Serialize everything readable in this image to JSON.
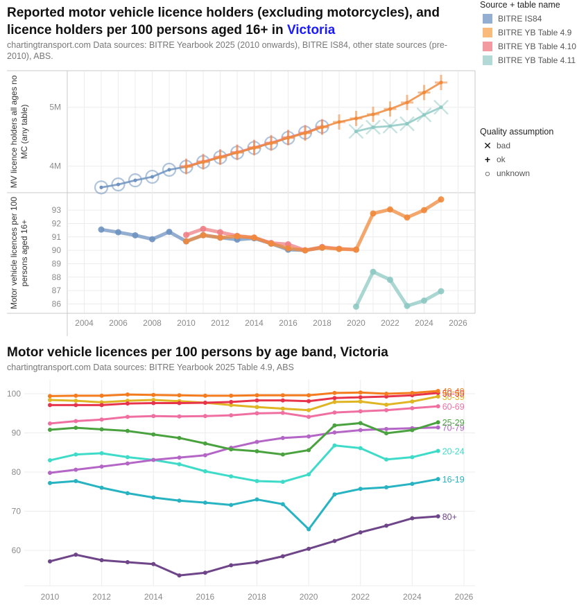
{
  "header": {
    "title_part1": "Reported motor vehicle licence holders (excluding motorcycles), and licence holders per 100 persons aged 16+ in ",
    "title_state": "Victoria",
    "subtitle": "chartingtransport.com  Data sources: BITRE Yearbook 2025 (2010 onwards), BITRE IS84, other state sources (pre-2010), ABS."
  },
  "legends": {
    "source": {
      "title": "Source + table name",
      "items": [
        {
          "label": "BITRE IS84",
          "color": "#7b9cc4"
        },
        {
          "label": "BITRE YB Table 4.9",
          "color": "#f7a652"
        },
        {
          "label": "BITRE YB Table 4.10",
          "color": "#ee7f86"
        },
        {
          "label": "BITRE YB Table 4.11",
          "color": "#9fcfcb"
        }
      ]
    },
    "quality": {
      "title": "Quality assumption",
      "items": [
        {
          "label": "bad",
          "glyph": "✕"
        },
        {
          "label": "ok",
          "glyph": "+"
        },
        {
          "label": "unknown",
          "glyph": "○"
        }
      ]
    }
  },
  "bottom_header": {
    "title": "Motor vehicle licences per 100 persons by age band, Victoria",
    "subtitle": "chartingtransport.com  Data sources: BITRE Yearbook 2025 Table 4.9, ABS"
  },
  "chart_data": [
    {
      "type": "line",
      "title": "Reported motor vehicle licence holders (excluding motorcycles)",
      "ylabel": "MV licence holders all ages no MC (any table)",
      "xlabel": "",
      "xlim": [
        2003,
        2027
      ],
      "ylim": [
        3.55,
        5.62
      ],
      "y_unit": "millions",
      "yticks": [
        4,
        5
      ],
      "ytick_labels": [
        "4M",
        "5M"
      ],
      "grid": true,
      "series": [
        {
          "name": "BITRE IS84",
          "quality": "unknown",
          "color": "#6f93c0",
          "x": [
            2005,
            2006,
            2007,
            2008,
            2009,
            2010,
            2011,
            2012,
            2013,
            2014,
            2015,
            2016,
            2017,
            2018
          ],
          "y": [
            3.64,
            3.69,
            3.76,
            3.82,
            3.94,
            3.99,
            4.07,
            4.15,
            4.23,
            4.31,
            4.39,
            4.48,
            4.57,
            4.67
          ]
        },
        {
          "name": "BITRE YB Table 4.10",
          "quality": "ok",
          "color": "#ee7f86",
          "x": [
            2010,
            2011,
            2012,
            2013,
            2014,
            2015,
            2016,
            2017,
            2018
          ],
          "y": [
            4.0,
            4.08,
            4.16,
            4.24,
            4.32,
            4.4,
            4.49,
            4.57,
            4.67
          ]
        },
        {
          "name": "BITRE YB Table 4.9",
          "quality": "ok",
          "color": "#f08a3c",
          "x": [
            2010,
            2011,
            2012,
            2013,
            2014,
            2015,
            2016,
            2017,
            2018,
            2019,
            2020,
            2021,
            2022,
            2023,
            2024,
            2025
          ],
          "y": [
            3.99,
            4.07,
            4.15,
            4.23,
            4.31,
            4.39,
            4.48,
            4.56,
            4.66,
            4.75,
            4.81,
            4.88,
            4.97,
            5.08,
            5.25,
            5.42
          ]
        },
        {
          "name": "BITRE YB Table 4.11",
          "quality": "bad",
          "color": "#8ec9c3",
          "x": [
            2020,
            2021,
            2022,
            2023,
            2024,
            2025
          ],
          "y": [
            4.59,
            4.66,
            4.68,
            4.72,
            4.87,
            5.0
          ]
        }
      ]
    },
    {
      "type": "line",
      "title": "Licence holders per 100 persons aged 16+",
      "ylabel": "Motor vehicle licences per 100 persons aged 16+",
      "xlabel": "",
      "xlim": [
        2003,
        2027
      ],
      "ylim": [
        85.3,
        94.3
      ],
      "yticks": [
        86,
        87,
        88,
        89,
        90,
        91,
        92,
        93
      ],
      "xticks": [
        2004,
        2006,
        2008,
        2010,
        2012,
        2014,
        2016,
        2018,
        2020,
        2022,
        2024,
        2026
      ],
      "grid": true,
      "series": [
        {
          "name": "BITRE IS84",
          "color": "#6f93c0",
          "x": [
            2005,
            2006,
            2007,
            2008,
            2009,
            2010,
            2011,
            2012,
            2013,
            2014,
            2015,
            2016,
            2017,
            2018
          ],
          "y": [
            91.55,
            91.35,
            91.12,
            90.83,
            91.38,
            90.67,
            91.13,
            90.95,
            90.8,
            90.9,
            90.5,
            90.05,
            90.0,
            90.2
          ]
        },
        {
          "name": "BITRE YB Table 4.10",
          "color": "#ee7f86",
          "x": [
            2010,
            2011,
            2012,
            2013,
            2014,
            2015,
            2016,
            2017,
            2018,
            2019,
            2020
          ],
          "y": [
            91.15,
            91.6,
            91.35,
            91.08,
            90.95,
            90.55,
            90.45,
            90.0,
            90.25,
            90.12,
            90.05
          ]
        },
        {
          "name": "BITRE YB Table 4.9",
          "color": "#f08a3c",
          "x": [
            2010,
            2011,
            2012,
            2013,
            2014,
            2015,
            2016,
            2017,
            2018,
            2019,
            2020,
            2021,
            2022,
            2023,
            2024,
            2025
          ],
          "y": [
            90.67,
            91.13,
            90.95,
            91.05,
            90.95,
            90.5,
            90.15,
            90.0,
            90.2,
            90.1,
            90.05,
            92.75,
            93.05,
            92.45,
            93.0,
            93.8
          ]
        },
        {
          "name": "BITRE YB Table 4.11",
          "color": "#8ec9c3",
          "x": [
            2020,
            2021,
            2022,
            2023,
            2024,
            2025
          ],
          "y": [
            85.8,
            88.4,
            87.8,
            85.85,
            86.25,
            86.95
          ]
        }
      ]
    },
    {
      "type": "line",
      "title": "Motor vehicle licences per 100 persons by age band, Victoria",
      "xlabel": "",
      "ylabel": "",
      "xlim": [
        2009,
        2026.3
      ],
      "ylim": [
        51,
        103.5
      ],
      "yticks": [
        60,
        70,
        80,
        90,
        100
      ],
      "xticks": [
        2010,
        2012,
        2014,
        2016,
        2018,
        2020,
        2022,
        2024,
        2026
      ],
      "grid": true,
      "x": [
        2010,
        2011,
        2012,
        2013,
        2014,
        2015,
        2016,
        2017,
        2018,
        2019,
        2020,
        2021,
        2022,
        2023,
        2024,
        2025
      ],
      "series": [
        {
          "name": "40-49",
          "color": "#f47c1e",
          "values": [
            99.4,
            99.5,
            99.5,
            99.8,
            99.7,
            99.6,
            99.5,
            99.5,
            99.6,
            99.6,
            99.6,
            100.2,
            100.3,
            100.0,
            100.2,
            100.7
          ]
        },
        {
          "name": "50-59",
          "color": "#e8344a",
          "values": [
            97.1,
            97.1,
            97.1,
            97.5,
            97.6,
            97.6,
            97.7,
            97.9,
            98.3,
            98.3,
            98.1,
            98.9,
            99.1,
            99.3,
            99.6,
            100.2
          ]
        },
        {
          "name": "30-39",
          "color": "#dfb524",
          "values": [
            98.4,
            98.2,
            97.8,
            98.2,
            98.4,
            98.1,
            97.7,
            97.1,
            96.6,
            96.2,
            95.8,
            97.9,
            98.0,
            97.2,
            98.0,
            99.3
          ]
        },
        {
          "name": "60-69",
          "color": "#f06fa1",
          "values": [
            92.4,
            93.0,
            93.4,
            94.1,
            94.3,
            94.2,
            94.3,
            94.5,
            95.0,
            95.1,
            94.1,
            95.2,
            95.5,
            95.8,
            96.3,
            96.8
          ]
        },
        {
          "name": "25-29",
          "color": "#4aa23f",
          "values": [
            90.8,
            91.3,
            90.9,
            90.5,
            89.6,
            88.7,
            87.3,
            85.8,
            85.3,
            84.5,
            85.6,
            91.9,
            92.5,
            89.9,
            90.7,
            92.7
          ]
        },
        {
          "name": "70-79",
          "color": "#b466c6",
          "values": [
            79.8,
            80.6,
            81.4,
            82.2,
            83.1,
            83.7,
            84.3,
            86.2,
            87.7,
            88.7,
            89.1,
            90.1,
            90.7,
            91.0,
            91.2,
            91.4
          ]
        },
        {
          "name": "20-24",
          "color": "#3edbc9",
          "values": [
            83.0,
            84.5,
            84.8,
            83.8,
            83.1,
            82.0,
            80.2,
            78.9,
            77.7,
            77.5,
            79.4,
            86.8,
            86.1,
            83.2,
            83.8,
            85.4
          ]
        },
        {
          "name": "16-19",
          "color": "#27b3c2",
          "values": [
            77.2,
            77.7,
            76.0,
            74.6,
            73.5,
            72.7,
            72.2,
            71.6,
            73.0,
            71.8,
            65.4,
            74.3,
            75.7,
            76.1,
            77.0,
            78.2
          ]
        },
        {
          "name": "80+",
          "color": "#6e4588",
          "values": [
            57.2,
            58.9,
            57.5,
            57.0,
            56.5,
            53.6,
            54.3,
            56.2,
            57.0,
            58.5,
            60.4,
            62.4,
            64.6,
            66.3,
            68.2,
            68.7
          ]
        }
      ]
    }
  ]
}
